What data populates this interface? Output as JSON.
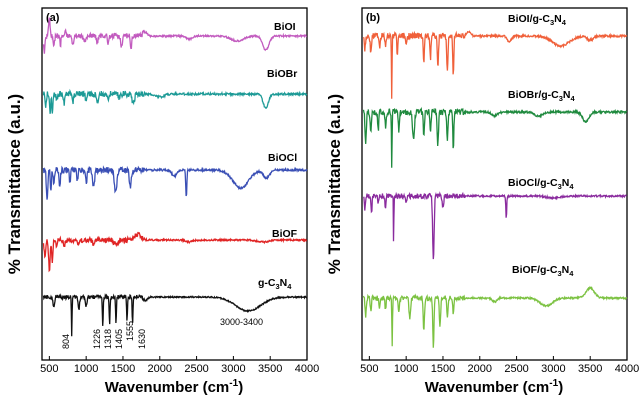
{
  "chart_data": [
    {
      "type": "line",
      "panel_label": "(a)",
      "ylabel": "% Transmittance (a.u.)",
      "xlabel_main": "Wavenumber (cm",
      "xlabel_sup": "-1",
      "xlabel_end": ")",
      "xlim": [
        400,
        4000
      ],
      "xticks": [
        "500",
        "1000",
        "1500",
        "2000",
        "2500",
        "3000",
        "3500",
        "4000"
      ],
      "y_ticks_shown": false,
      "series": [
        {
          "name": "BiOI",
          "color": "#c25bbf"
        },
        {
          "name": "BiOBr",
          "color": "#1c9a96"
        },
        {
          "name": "BiOCl",
          "color": "#3a4fb5"
        },
        {
          "name": "BiOF",
          "color": "#e02424"
        },
        {
          "name": "g-C3N4",
          "name_main": "g-C",
          "name_sub1": "3",
          "name_mid": "N",
          "name_sub2": "4",
          "color": "#111111"
        }
      ],
      "annotations": [
        "804",
        "1226",
        "1318",
        "1405",
        "1555",
        "1630",
        "3000-3400"
      ]
    },
    {
      "type": "line",
      "panel_label": "(b)",
      "ylabel": "% Transmittance (a.u.)",
      "xlabel_main": "Wavenumber (cm",
      "xlabel_sup": "-1",
      "xlabel_end": ")",
      "xlim": [
        400,
        4000
      ],
      "xticks": [
        "500",
        "1000",
        "1500",
        "2000",
        "2500",
        "3000",
        "3500",
        "4000"
      ],
      "y_ticks_shown": false,
      "series": [
        {
          "name": "BiOI/g-C3N4",
          "name_main": "BiOI/g-C",
          "name_sub1": "3",
          "name_mid": "N",
          "name_sub2": "4",
          "color": "#f0603a"
        },
        {
          "name": "BiOBr/g-C3N4",
          "name_main": "BiOBr/g-C",
          "name_sub1": "3",
          "name_mid": "N",
          "name_sub2": "4",
          "color": "#1f8a3e"
        },
        {
          "name": "BiOCl/g-C3N4",
          "name_main": "BiOCl/g-C",
          "name_sub1": "3",
          "name_mid": "N",
          "name_sub2": "4",
          "color": "#8a2b9e"
        },
        {
          "name": "BiOF/g-C3N4",
          "name_main": "BiOF/g-C",
          "name_sub1": "3",
          "name_mid": "N",
          "name_sub2": "4",
          "color": "#7cc242"
        }
      ]
    }
  ]
}
